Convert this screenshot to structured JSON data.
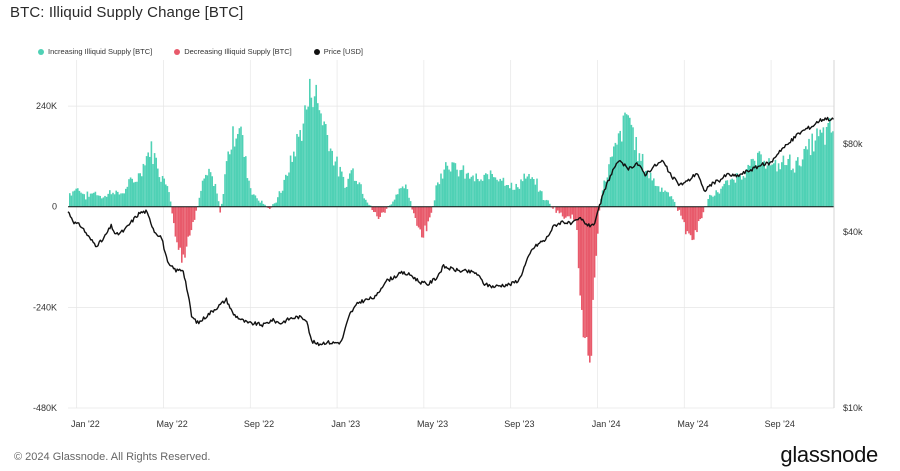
{
  "title": "BTC: Illiquid Supply Change [BTC]",
  "footer": {
    "copyright": "© 2024 Glassnode. All Rights Reserved.",
    "brand": "glassnode"
  },
  "colors": {
    "increase": "#4fd1b5",
    "decrease": "#e85a6b",
    "price": "#111111",
    "grid": "#e6e6e6"
  },
  "chart_data": {
    "type": "bar",
    "title": "BTC: Illiquid Supply Change [BTC]",
    "legend_position": "top-left",
    "grid": true,
    "series": [
      {
        "name": "Increasing Illiquid Supply [BTC]",
        "color": "#4fd1b5"
      },
      {
        "name": "Decreasing Illiquid Supply [BTC]",
        "color": "#e85a6b"
      },
      {
        "name": "Price [USD]",
        "color": "#111111"
      }
    ],
    "x_ticks": [
      "Jan '22",
      "May '22",
      "Sep '22",
      "Jan '23",
      "May '23",
      "Sep '23",
      "Jan '24",
      "May '24",
      "Sep '24"
    ],
    "x_range_months": [
      0,
      35.3
    ],
    "y_left": {
      "ticks": [
        "240K",
        "0",
        "-240K",
        "-480K"
      ],
      "tick_values": [
        240000,
        0,
        -240000,
        -480000
      ],
      "range": [
        -480000,
        350000
      ]
    },
    "y_right": {
      "scale": "log",
      "ticks": [
        "$80k",
        "$40k",
        "$10k"
      ],
      "tick_values": [
        80000,
        40000,
        10000
      ],
      "range": [
        10000,
        155000
      ]
    },
    "supply_change_keypoints": [
      [
        0,
        30000
      ],
      [
        0.4,
        45000
      ],
      [
        0.8,
        25000
      ],
      [
        1.2,
        35000
      ],
      [
        1.6,
        20000
      ],
      [
        2.0,
        40000
      ],
      [
        2.4,
        28000
      ],
      [
        2.8,
        55000
      ],
      [
        3.2,
        70000
      ],
      [
        3.6,
        120000
      ],
      [
        3.8,
        140000
      ],
      [
        4.0,
        110000
      ],
      [
        4.3,
        70000
      ],
      [
        4.6,
        50000
      ],
      [
        4.9,
        -60000
      ],
      [
        5.2,
        -140000
      ],
      [
        5.5,
        -90000
      ],
      [
        5.8,
        -30000
      ],
      [
        6.2,
        60000
      ],
      [
        6.5,
        80000
      ],
      [
        6.8,
        40000
      ],
      [
        7.0,
        -20000
      ],
      [
        7.3,
        120000
      ],
      [
        7.6,
        170000
      ],
      [
        7.9,
        200000
      ],
      [
        8.1,
        120000
      ],
      [
        8.4,
        40000
      ],
      [
        8.7,
        20000
      ],
      [
        9.0,
        10000
      ],
      [
        9.3,
        -10000
      ],
      [
        9.6,
        20000
      ],
      [
        9.9,
        50000
      ],
      [
        10.2,
        100000
      ],
      [
        10.5,
        150000
      ],
      [
        10.8,
        200000
      ],
      [
        11.0,
        240000
      ],
      [
        11.2,
        295000
      ],
      [
        11.4,
        260000
      ],
      [
        11.6,
        230000
      ],
      [
        11.9,
        180000
      ],
      [
        12.2,
        120000
      ],
      [
        12.5,
        80000
      ],
      [
        12.8,
        50000
      ],
      [
        13.0,
        90000
      ],
      [
        13.3,
        70000
      ],
      [
        13.6,
        30000
      ],
      [
        14.0,
        -10000
      ],
      [
        14.3,
        -25000
      ],
      [
        14.6,
        -10000
      ],
      [
        15.0,
        20000
      ],
      [
        15.3,
        50000
      ],
      [
        15.6,
        40000
      ],
      [
        16.0,
        -40000
      ],
      [
        16.3,
        -75000
      ],
      [
        16.6,
        -40000
      ],
      [
        17.0,
        60000
      ],
      [
        17.4,
        110000
      ],
      [
        17.8,
        90000
      ],
      [
        18.2,
        80000
      ],
      [
        18.6,
        70000
      ],
      [
        19.0,
        60000
      ],
      [
        19.5,
        80000
      ],
      [
        20.0,
        70000
      ],
      [
        20.5,
        40000
      ],
      [
        21.0,
        70000
      ],
      [
        21.5,
        60000
      ],
      [
        21.9,
        20000
      ],
      [
        22.2,
        5000
      ],
      [
        22.5,
        -10000
      ],
      [
        22.8,
        -25000
      ],
      [
        23.1,
        -20000
      ],
      [
        23.4,
        -40000
      ],
      [
        23.7,
        -300000
      ],
      [
        23.9,
        -360000
      ],
      [
        24.1,
        -320000
      ],
      [
        24.3,
        -120000
      ],
      [
        24.5,
        20000
      ],
      [
        24.8,
        80000
      ],
      [
        25.2,
        140000
      ],
      [
        25.5,
        180000
      ],
      [
        25.8,
        230000
      ],
      [
        26.0,
        170000
      ],
      [
        26.3,
        120000
      ],
      [
        26.6,
        90000
      ],
      [
        27.0,
        60000
      ],
      [
        27.4,
        40000
      ],
      [
        27.8,
        20000
      ],
      [
        28.2,
        -20000
      ],
      [
        28.5,
        -60000
      ],
      [
        28.8,
        -80000
      ],
      [
        29.1,
        -30000
      ],
      [
        29.5,
        20000
      ],
      [
        30.0,
        40000
      ],
      [
        30.5,
        60000
      ],
      [
        31.0,
        80000
      ],
      [
        31.5,
        100000
      ],
      [
        32.0,
        120000
      ],
      [
        32.5,
        90000
      ],
      [
        33.0,
        110000
      ],
      [
        33.5,
        100000
      ],
      [
        34.0,
        130000
      ],
      [
        34.4,
        160000
      ],
      [
        34.8,
        170000
      ],
      [
        35.2,
        185000
      ]
    ],
    "price_keypoints": [
      [
        0,
        47000
      ],
      [
        0.3,
        43000
      ],
      [
        0.6,
        42000
      ],
      [
        1.0,
        38000
      ],
      [
        1.3,
        36000
      ],
      [
        1.6,
        37500
      ],
      [
        2.0,
        42000
      ],
      [
        2.2,
        39000
      ],
      [
        2.6,
        40500
      ],
      [
        3.0,
        44000
      ],
      [
        3.3,
        46500
      ],
      [
        3.6,
        47000
      ],
      [
        4.0,
        40000
      ],
      [
        4.3,
        38500
      ],
      [
        4.6,
        31000
      ],
      [
        5.0,
        29500
      ],
      [
        5.3,
        29800
      ],
      [
        5.7,
        20500
      ],
      [
        6.0,
        19500
      ],
      [
        6.5,
        21000
      ],
      [
        7.0,
        22500
      ],
      [
        7.3,
        23500
      ],
      [
        7.6,
        21000
      ],
      [
        8.0,
        20000
      ],
      [
        8.3,
        19500
      ],
      [
        8.7,
        19400
      ],
      [
        9.0,
        19200
      ],
      [
        9.4,
        20000
      ],
      [
        9.8,
        19500
      ],
      [
        10.2,
        20200
      ],
      [
        10.6,
        20500
      ],
      [
        11.0,
        20100
      ],
      [
        11.2,
        17000
      ],
      [
        11.5,
        16500
      ],
      [
        11.9,
        16800
      ],
      [
        12.2,
        16700
      ],
      [
        12.6,
        16800
      ],
      [
        13.0,
        21000
      ],
      [
        13.4,
        23000
      ],
      [
        13.8,
        23500
      ],
      [
        14.2,
        24000
      ],
      [
        14.6,
        27000
      ],
      [
        15.0,
        28000
      ],
      [
        15.4,
        29000
      ],
      [
        15.8,
        28500
      ],
      [
        16.2,
        27000
      ],
      [
        16.6,
        26500
      ],
      [
        17.0,
        28000
      ],
      [
        17.3,
        30500
      ],
      [
        17.6,
        30000
      ],
      [
        18.0,
        29500
      ],
      [
        18.4,
        29300
      ],
      [
        18.8,
        29000
      ],
      [
        19.2,
        26500
      ],
      [
        19.6,
        26000
      ],
      [
        20.0,
        26300
      ],
      [
        20.4,
        26500
      ],
      [
        20.8,
        27500
      ],
      [
        21.0,
        30000
      ],
      [
        21.4,
        35000
      ],
      [
        21.8,
        37000
      ],
      [
        22.0,
        37500
      ],
      [
        22.4,
        42000
      ],
      [
        22.8,
        43500
      ],
      [
        23.2,
        42500
      ],
      [
        23.6,
        44500
      ],
      [
        24.0,
        42000
      ],
      [
        24.3,
        43000
      ],
      [
        24.6,
        52000
      ],
      [
        24.9,
        60000
      ],
      [
        25.2,
        67000
      ],
      [
        25.5,
        70000
      ],
      [
        25.8,
        65000
      ],
      [
        26.2,
        69000
      ],
      [
        26.6,
        63000
      ],
      [
        27.0,
        67000
      ],
      [
        27.4,
        70000
      ],
      [
        27.8,
        62000
      ],
      [
        28.2,
        58000
      ],
      [
        28.6,
        60000
      ],
      [
        29.0,
        64000
      ],
      [
        29.3,
        55000
      ],
      [
        29.6,
        58000
      ],
      [
        30.0,
        60000
      ],
      [
        30.4,
        63000
      ],
      [
        30.8,
        62000
      ],
      [
        31.2,
        64000
      ],
      [
        31.6,
        66000
      ],
      [
        32.0,
        68000
      ],
      [
        32.4,
        69000
      ],
      [
        32.8,
        76000
      ],
      [
        33.2,
        80000
      ],
      [
        33.6,
        86000
      ],
      [
        34.0,
        90000
      ],
      [
        34.3,
        92000
      ],
      [
        34.6,
        96000
      ],
      [
        34.9,
        98000
      ],
      [
        35.2,
        97000
      ]
    ]
  }
}
